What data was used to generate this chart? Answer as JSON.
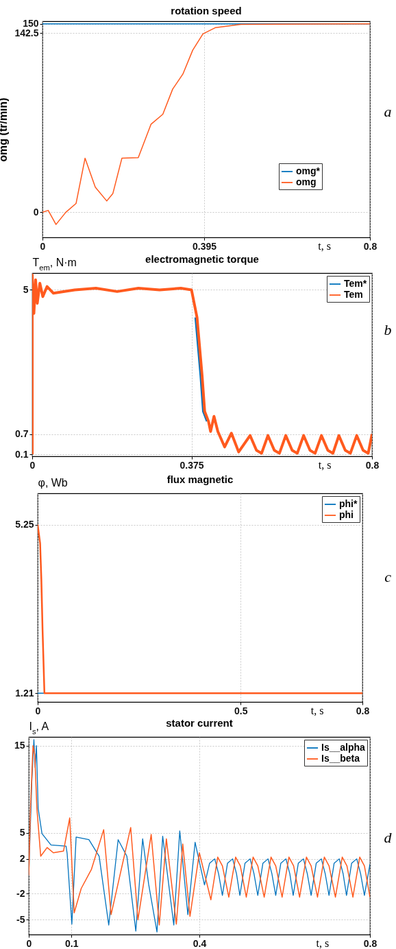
{
  "chart_data": [
    {
      "type": "line",
      "title": "rotation speed",
      "xlabel": "t, s",
      "ylabel": "omg (tr/min)",
      "annotations": [
        "a"
      ],
      "xlim": [
        0,
        0.8
      ],
      "xticks": [
        0,
        0.395,
        0.8
      ],
      "ylim": [
        -20,
        152
      ],
      "yticks": [
        0,
        142.5,
        150
      ],
      "grid": true,
      "legend": "bottom right",
      "series": [
        {
          "name": "omg*",
          "color": "#0072bd",
          "x": [
            0,
            0.8
          ],
          "values": [
            150,
            150
          ]
        },
        {
          "name": "omg",
          "color": "#ff5a1e",
          "x": [
            0,
            0.014,
            0.033,
            0.057,
            0.082,
            0.104,
            0.129,
            0.157,
            0.172,
            0.194,
            0.234,
            0.265,
            0.294,
            0.318,
            0.343,
            0.367,
            0.392,
            0.423,
            0.485,
            0.8
          ],
          "values": [
            0,
            1.5,
            -9.7,
            0,
            7,
            43,
            20,
            9,
            15,
            43,
            43.5,
            70,
            78,
            98,
            110,
            129,
            142,
            147,
            149.5,
            150
          ]
        }
      ]
    },
    {
      "type": "line",
      "title": "electromagnetic torque",
      "xlabel": "t, s",
      "ylabel": "T$_{em}$, N·m",
      "annotations": [
        "b"
      ],
      "xlim": [
        0,
        0.8
      ],
      "xticks": [
        0,
        0.375,
        0.8
      ],
      "ylim": [
        0.04,
        5.5
      ],
      "yticks": [
        0.1,
        0.7,
        5
      ],
      "grid": true,
      "legend": "top right",
      "series": [
        {
          "name": "Tem*",
          "color": "#0072bd",
          "x": [
            0.384,
            0.396,
            0.402,
            0.411
          ],
          "values": [
            4.18,
            2.44,
            1.38,
            1.08
          ]
        },
        {
          "name": "Tem",
          "color": "#ff5a1e",
          "x": [
            0,
            0,
            0.004,
            0.008,
            0.012,
            0.018,
            0.025,
            0.035,
            0.05,
            0.1,
            0.15,
            0.2,
            0.25,
            0.3,
            0.35,
            0.375,
            0.388,
            0.4,
            0.406,
            0.415,
            0.42,
            0.428,
            0.437,
            0.453,
            0.469,
            0.486,
            0.513,
            0.528,
            0.54,
            0.555,
            0.57,
            0.582,
            0.597,
            0.612,
            0.624,
            0.639,
            0.654,
            0.666,
            0.681,
            0.696,
            0.708,
            0.722,
            0.737,
            0.749,
            0.764,
            0.779,
            0.791,
            0.8
          ],
          "values": [
            0.1,
            5.45,
            4.3,
            5.3,
            4.6,
            5.2,
            4.8,
            5.1,
            4.9,
            5,
            5.05,
            4.95,
            5.05,
            5,
            5.05,
            5,
            4.18,
            2.44,
            1.38,
            1.08,
            0.78,
            1.23,
            0.78,
            0.32,
            0.73,
            0.17,
            0.66,
            0.22,
            0.13,
            0.66,
            0.22,
            0.13,
            0.66,
            0.22,
            0.13,
            0.66,
            0.22,
            0.13,
            0.66,
            0.22,
            0.13,
            0.66,
            0.22,
            0.13,
            0.66,
            0.22,
            0.13,
            0.7
          ]
        }
      ]
    },
    {
      "type": "line",
      "title": "flux magnetic",
      "xlabel": "t, s",
      "ylabel": "φ, Wb",
      "annotations": [
        "c"
      ],
      "xlim": [
        0,
        0.8
      ],
      "xticks": [
        0,
        0.5,
        0.8
      ],
      "ylim": [
        1,
        6
      ],
      "yticks": [
        1.21,
        5.25
      ],
      "grid": true,
      "legend": "top right",
      "series": [
        {
          "name": "phi*",
          "color": "#0072bd",
          "x": [
            0,
            0.0166
          ],
          "values": [
            1.21,
            1.21
          ]
        },
        {
          "name": "phi",
          "color": "#ff5a1e",
          "x": [
            0,
            0.006,
            0.009,
            0.012,
            0.0166,
            0.8
          ],
          "values": [
            5.25,
            4.8,
            3.95,
            2.73,
            1.21,
            1.21
          ]
        }
      ]
    },
    {
      "type": "line",
      "title": "stator current",
      "xlabel": "t, s",
      "ylabel": "I$_{s}$, A",
      "annotations": [
        "d"
      ],
      "xlim": [
        0,
        0.8
      ],
      "xticks": [
        0,
        0.1,
        0.4,
        0.8
      ],
      "ylim": [
        -6.7,
        16
      ],
      "yticks": [
        -5,
        -2,
        2,
        5,
        15
      ],
      "grid": true,
      "legend": "top right",
      "series": [
        {
          "name": "Is__alpha",
          "color": "#0072bd",
          "x": [
            0,
            0.007,
            0.012,
            0.015,
            0.018,
            0.022,
            0.031,
            0.052,
            0.0875,
            0.09,
            0.101,
            0.111,
            0.141,
            0.165,
            0.1875,
            0.2095,
            0.23,
            0.251,
            0.267,
            0.281,
            0.3006,
            0.314,
            0.34,
            0.354,
            0.373,
            0.39,
            0.412,
            0.424,
            0.436,
            0.445,
            0.454,
            0.466,
            0.478,
            0.487,
            0.495,
            0.507,
            0.519,
            0.528,
            0.537,
            0.549,
            0.561,
            0.57,
            0.579,
            0.591,
            0.603,
            0.612,
            0.62,
            0.632,
            0.644,
            0.653,
            0.662,
            0.674,
            0.686,
            0.695,
            0.704,
            0.716,
            0.728,
            0.737,
            0.745,
            0.757,
            0.769,
            0.778,
            0.787,
            0.8
          ],
          "values": [
            0.1,
            10.8,
            15.7,
            12.5,
            15,
            7.8,
            4.9,
            3.6,
            3.45,
            2.6,
            -5.5,
            4.5,
            4.2,
            2.3,
            -5.6,
            4.2,
            2.3,
            -6.3,
            4.3,
            -0.9,
            -6.4,
            4.6,
            -5.6,
            5.2,
            -4.4,
            3.9,
            -1,
            1.5,
            2,
            0.3,
            -2.2,
            1.5,
            2,
            0.3,
            -2.2,
            1.5,
            2,
            0.3,
            -2.2,
            1.5,
            2,
            0.3,
            -2.2,
            1.5,
            2,
            0.3,
            -2.2,
            1.5,
            2,
            0.3,
            -2.2,
            1.5,
            2,
            0.3,
            -2.2,
            1.5,
            2,
            0.3,
            -2.2,
            1.5,
            2,
            0.3,
            -2.2,
            1.4
          ]
        },
        {
          "name": "Is__beta",
          "color": "#ff5a1e",
          "x": [
            0,
            0.004,
            0.01,
            0.014,
            0.019,
            0.028,
            0.043,
            0.0577,
            0.0815,
            0.096,
            0.1065,
            0.123,
            0.147,
            0.1756,
            0.193,
            0.239,
            0.256,
            0.287,
            0.306,
            0.3226,
            0.346,
            0.361,
            0.378,
            0.4,
            0.427,
            0.443,
            0.454,
            0.469,
            0.485,
            0.496,
            0.51,
            0.526,
            0.537,
            0.552,
            0.568,
            0.579,
            0.594,
            0.61,
            0.621,
            0.635,
            0.651,
            0.662,
            0.677,
            0.693,
            0.704,
            0.719,
            0.735,
            0.746,
            0.76,
            0.776,
            0.787,
            0.8
          ],
          "values": [
            0.1,
            7.8,
            15,
            14,
            7.8,
            2.3,
            3.3,
            2.7,
            2.9,
            6.7,
            -4.2,
            -1.4,
            0.8,
            5.35,
            -4.4,
            5.6,
            -5,
            4.8,
            -5.6,
            4.3,
            -5.5,
            3.7,
            -4.6,
            2.7,
            -2.7,
            2.2,
            1.2,
            -2.4,
            2.2,
            1.2,
            -2.4,
            2.2,
            1.2,
            -2.4,
            2.2,
            1.2,
            -2.4,
            2.2,
            1.2,
            -2.4,
            2.2,
            1.2,
            -2.4,
            2.2,
            1.2,
            -2.4,
            2.2,
            1.2,
            -2.4,
            2.2,
            1.2,
            -2.4
          ]
        }
      ]
    }
  ]
}
